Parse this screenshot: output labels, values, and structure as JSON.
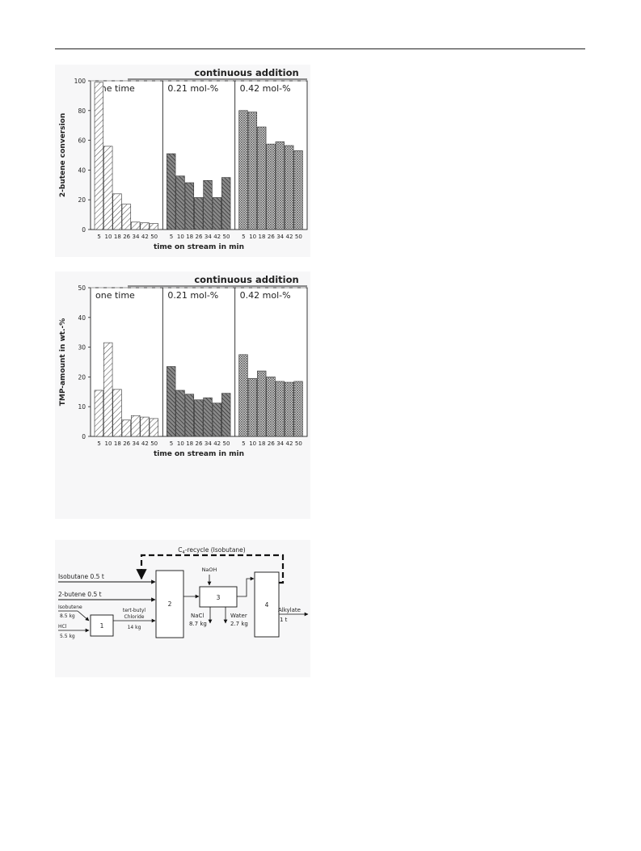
{
  "chart_data": [
    {
      "type": "bar",
      "title": "continuous addition",
      "ylabel": "2-butene conversion",
      "xlabel": "time on stream in min",
      "ylim": [
        0,
        100
      ],
      "yticks": [
        0,
        20,
        40,
        60,
        80,
        100
      ],
      "reference_line": 100,
      "categories": [
        "5",
        "10",
        "18",
        "26",
        "34",
        "42",
        "50"
      ],
      "groups": [
        {
          "label": "one time",
          "pattern": "diag",
          "values": [
            99,
            56,
            24,
            17,
            5,
            4.5,
            4
          ]
        },
        {
          "label": "0.21 mol-%",
          "pattern": "dark",
          "values": [
            51,
            36,
            31.5,
            21.5,
            33,
            21.5,
            35
          ]
        },
        {
          "label": "0.42 mol-%",
          "pattern": "cross",
          "values": [
            80,
            79,
            69,
            57.5,
            59,
            56.5,
            53
          ]
        }
      ]
    },
    {
      "type": "bar",
      "title": "continuous addition",
      "ylabel": "TMP-amount in wt.-%",
      "xlabel": "time on stream in min",
      "ylim": [
        0,
        50
      ],
      "yticks": [
        0,
        10,
        20,
        30,
        40,
        50
      ],
      "reference_line": 50,
      "categories": [
        "5",
        "10",
        "18",
        "26",
        "34",
        "42",
        "50"
      ],
      "groups": [
        {
          "label": "one time",
          "pattern": "diag",
          "values": [
            15.5,
            31.5,
            15.8,
            5.5,
            7,
            6.5,
            6
          ]
        },
        {
          "label": "0.21 mol-%",
          "pattern": "dark",
          "values": [
            23.5,
            15.5,
            14.2,
            12.3,
            13,
            11.2,
            14.5
          ]
        },
        {
          "label": "0.42 mol-%",
          "pattern": "cross",
          "values": [
            27.5,
            19.5,
            22,
            20,
            18.5,
            18.2,
            18.5
          ]
        }
      ]
    }
  ],
  "flowsheet": {
    "recycle_label": "C",
    "recycle_sub": "4",
    "recycle_rest": "-recycle (Isobutane)",
    "isobutane_feed": "Isobutane  0.5 t",
    "butene_feed": "2-butene    0.5 t",
    "isobutene_label": "Isobutene",
    "isobutene_mass": "8.5 kg",
    "hcl_label": "HCl",
    "hcl_mass": "5.5 kg",
    "unit1": "1",
    "unit2": "2",
    "unit3": "3",
    "unit4": "4",
    "tbc_label1": "tert-butyl",
    "tbc_label2": "Chloride",
    "tbc_mass": "14 kg",
    "naoh_label": "NaOH",
    "nacl_label": "NaCl",
    "nacl_mass": "8.7 kg",
    "water_label": "Water",
    "water_mass": "2.7 kg",
    "alkylate_label": "Alkylate",
    "alkylate_mass": "1 t"
  }
}
